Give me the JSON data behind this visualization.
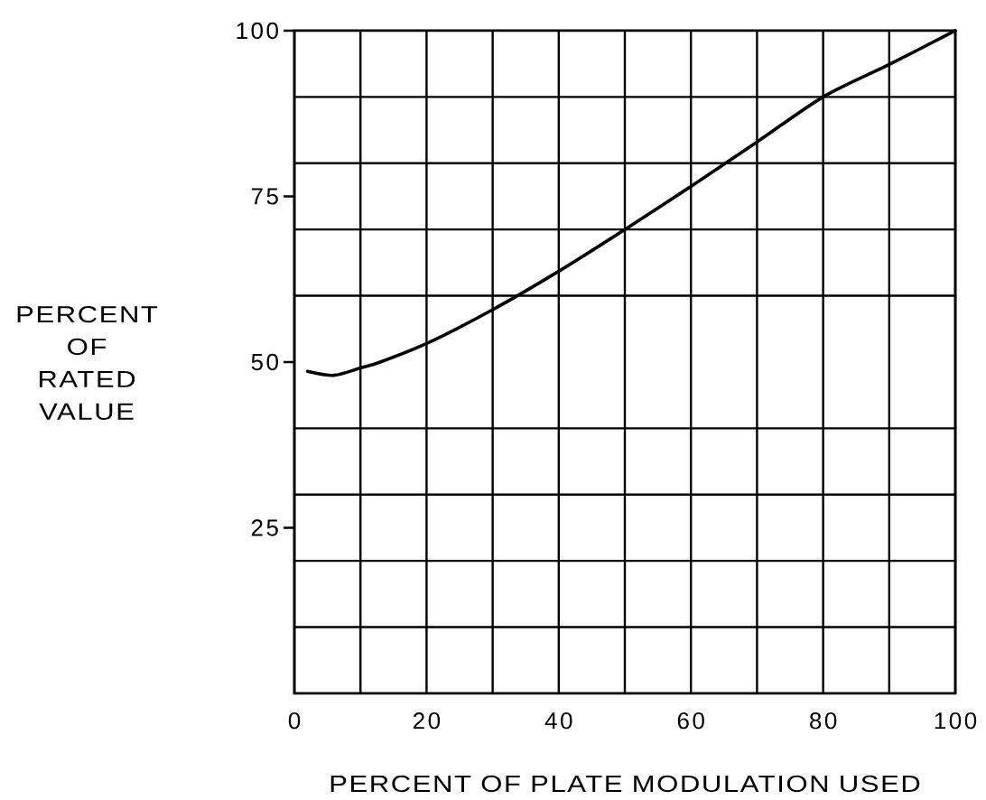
{
  "chart_data": {
    "type": "line",
    "xlabel": "PERCENT OF PLATE MODULATION USED",
    "ylabel": "PERCENT OF RATED VALUE",
    "x": [
      2,
      6,
      10,
      13,
      20,
      30,
      40,
      50,
      60,
      70,
      80,
      90,
      100
    ],
    "values": [
      48.6,
      48,
      49.1,
      50,
      52.8,
      57.9,
      63.7,
      70,
      76.5,
      83.2,
      90,
      94.9,
      100
    ],
    "color": "#000000",
    "marker": "none",
    "xlim": [
      0,
      100
    ],
    "ylim": [
      0,
      100
    ],
    "xticks": [
      0,
      {
        "value": 10,
        "label": null
      },
      20,
      {
        "value": 30,
        "label": null
      },
      40,
      {
        "value": 50,
        "label": null
      },
      60,
      {
        "value": 70,
        "label": null
      },
      80,
      {
        "value": 90,
        "label": null
      },
      100
    ],
    "yticks": [
      {
        "value": 10,
        "label": null
      },
      {
        "value": 20,
        "label": null
      },
      25,
      {
        "value": 30,
        "label": null
      },
      {
        "value": 40,
        "label": null
      },
      50,
      {
        "value": 60,
        "label": null
      },
      {
        "value": 70,
        "label": null
      },
      75,
      {
        "value": 80,
        "label": null
      },
      {
        "value": 90,
        "label": null
      },
      100
    ],
    "grid": true
  }
}
